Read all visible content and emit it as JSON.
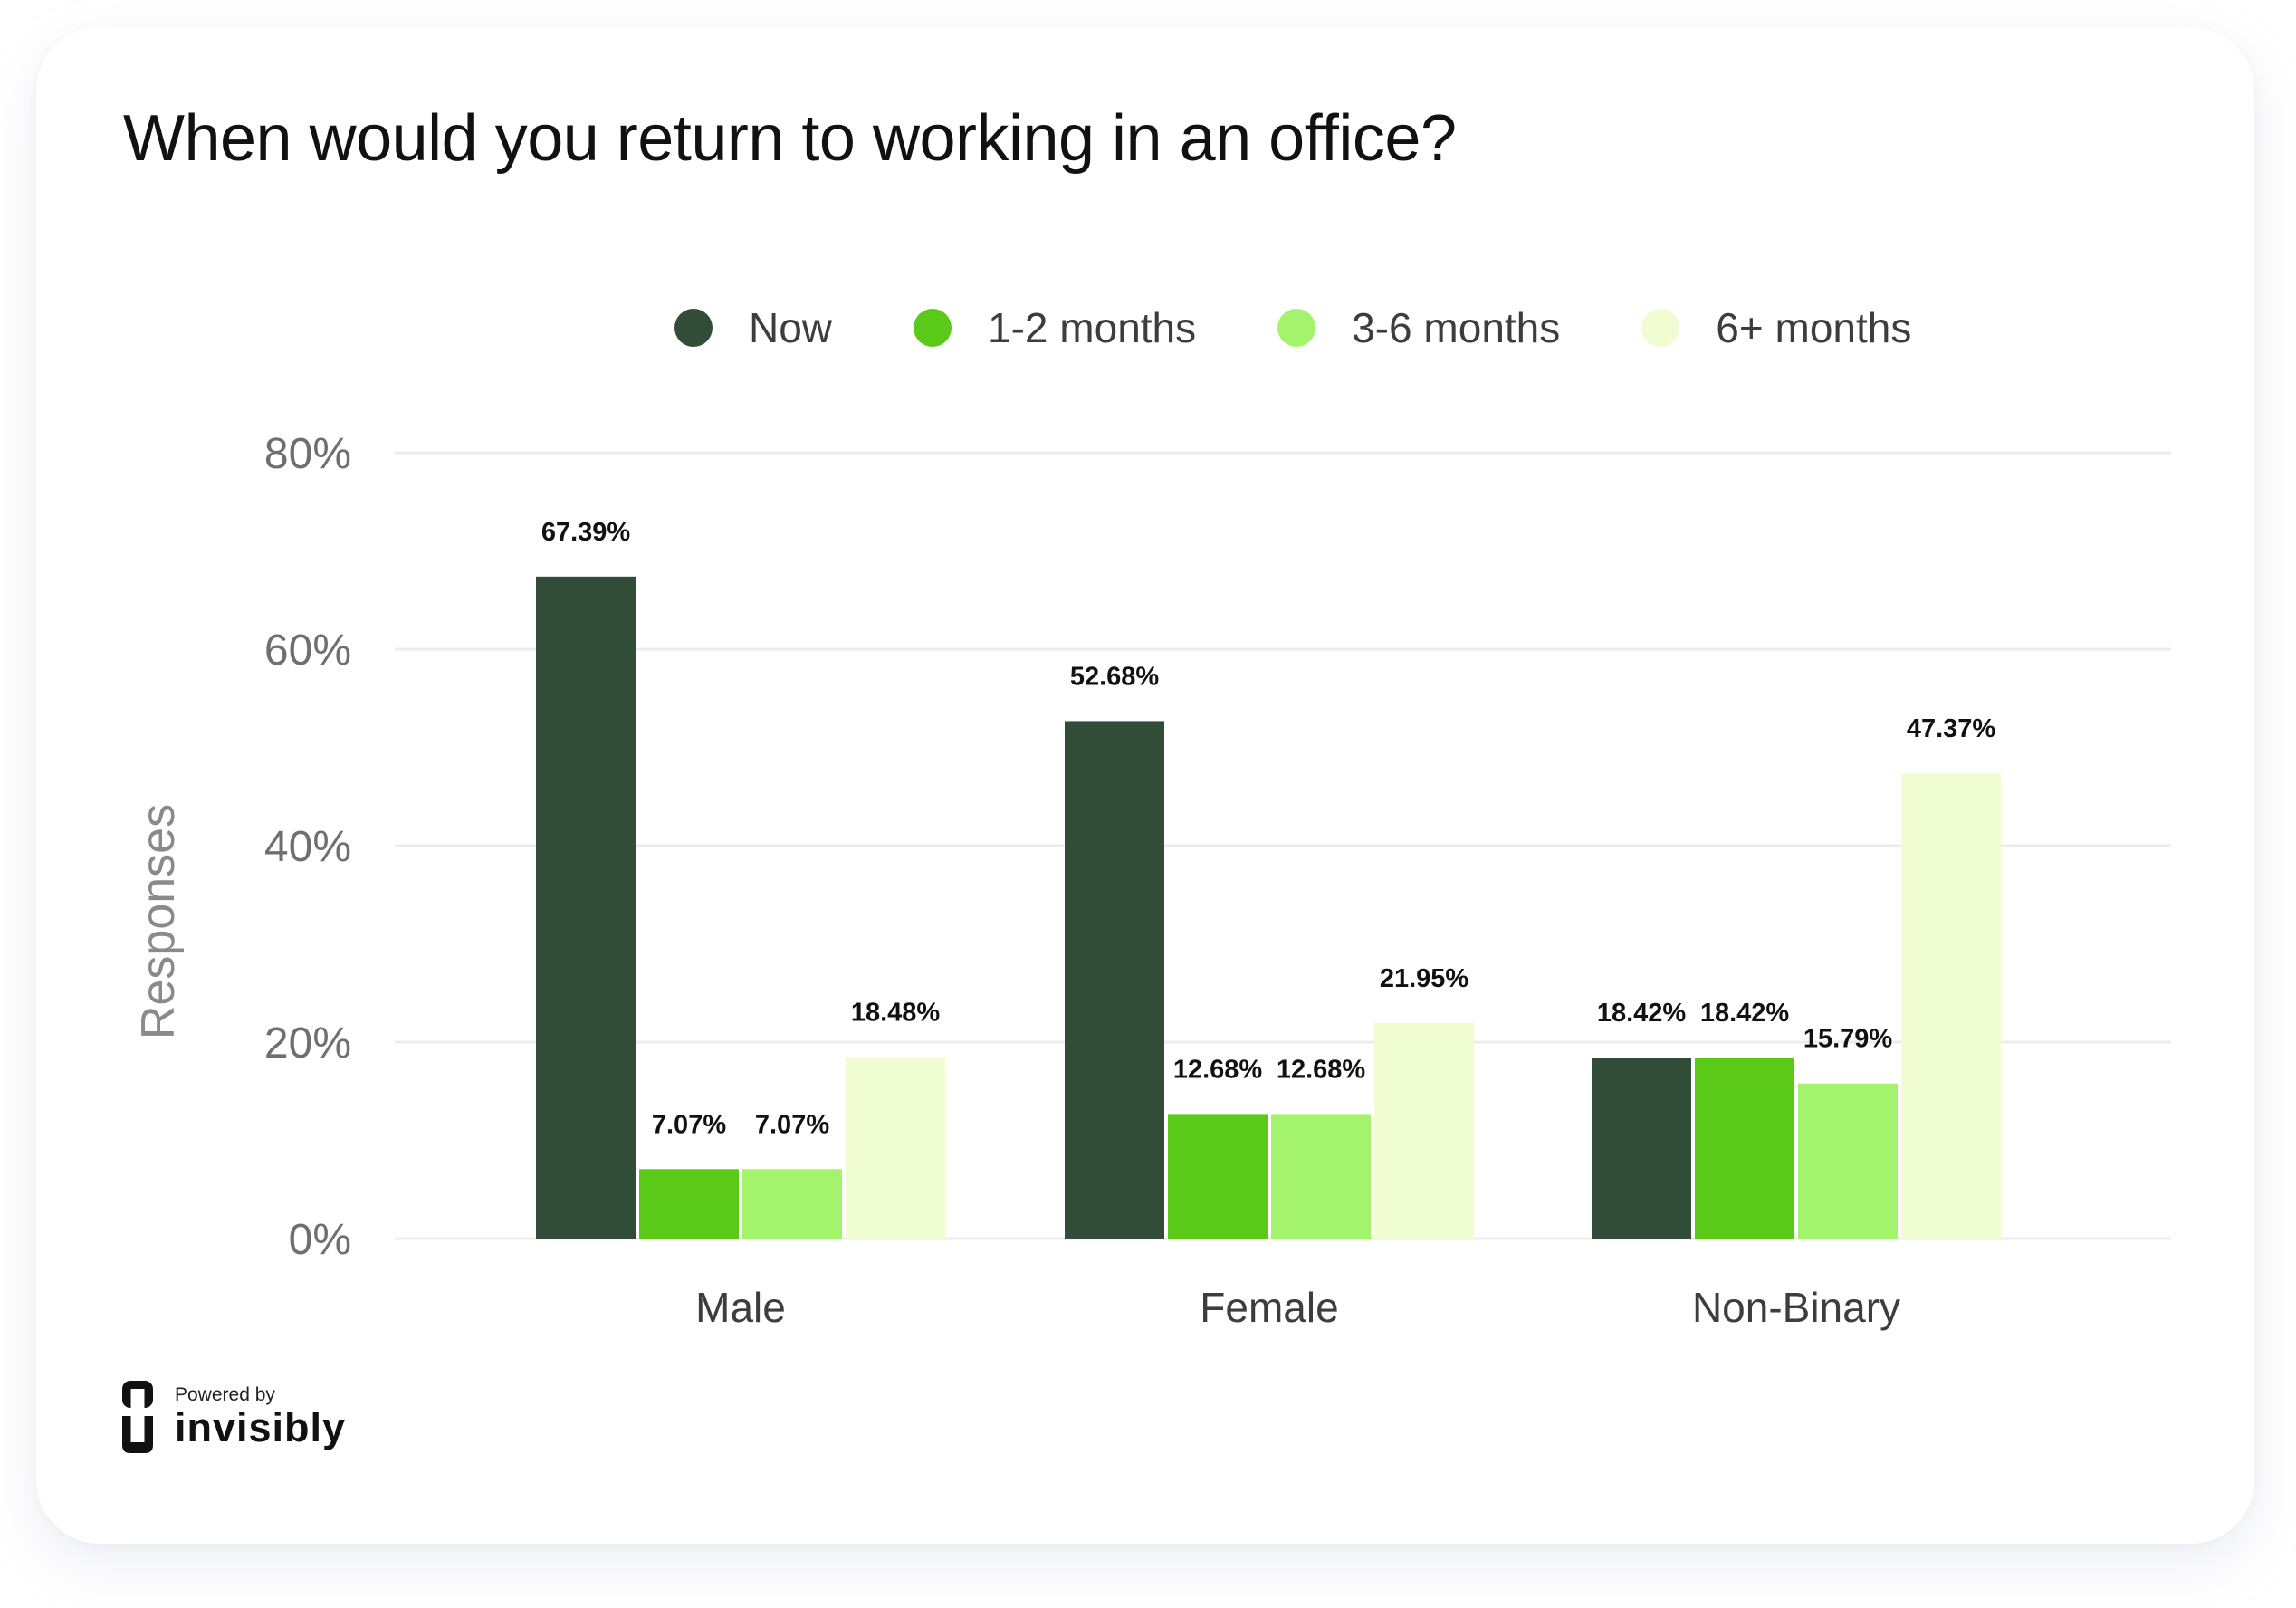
{
  "footer": {
    "powered_by": "Powered by",
    "brand": "invisibly",
    "logo_icon": "invisibly-logo-icon"
  },
  "chart_data": {
    "type": "bar",
    "title": "When would you return to working in an office?",
    "xlabel": "",
    "ylabel": "Responses",
    "categories": [
      "Male",
      "Female",
      "Non-Binary"
    ],
    "series": [
      {
        "name": "Now",
        "color": "#314d37",
        "values": [
          67.39,
          52.68,
          18.42
        ],
        "labels": [
          "67.39%",
          "52.68%",
          "18.42%"
        ]
      },
      {
        "name": "1-2 months",
        "color": "#5ac917",
        "values": [
          7.07,
          12.68,
          18.42
        ],
        "labels": [
          "7.07%",
          "12.68%",
          "18.42%"
        ]
      },
      {
        "name": "3-6 months",
        "color": "#a3f46c",
        "values": [
          7.07,
          12.68,
          15.79
        ],
        "labels": [
          "7.07%",
          "12.68%",
          "15.79%"
        ]
      },
      {
        "name": "6+ months",
        "color": "#effdd0",
        "values": [
          18.48,
          21.95,
          47.37
        ],
        "labels": [
          "18.48%",
          "21.95%",
          "47.37%"
        ]
      }
    ],
    "yticks": [
      "0%",
      "20%",
      "40%",
      "60%",
      "80%"
    ],
    "ytick_values": [
      0,
      20,
      40,
      60,
      80
    ],
    "ylim": [
      0,
      80
    ],
    "grid": true,
    "legend_position": "top"
  }
}
